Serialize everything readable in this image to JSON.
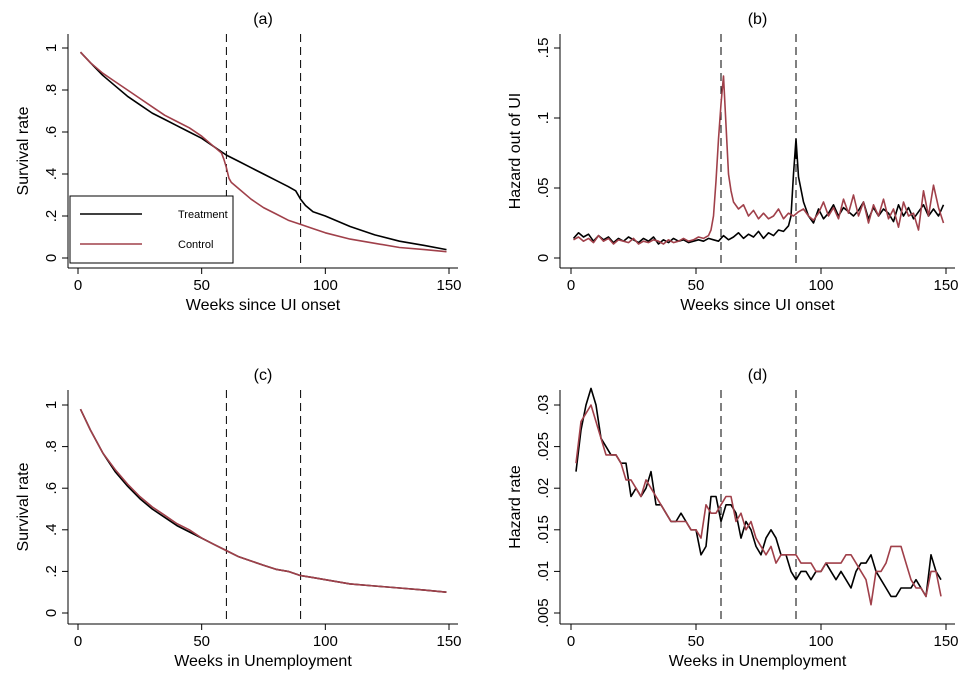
{
  "colors": {
    "treatment": "#000000",
    "control": "#a0404a",
    "axis": "#000000",
    "vline": "#000000"
  },
  "chart_data": [
    {
      "id": "a",
      "type": "line",
      "title": "(a)",
      "xlabel": "Weeks since UI onset",
      "ylabel": "Survival rate",
      "xlim": [
        0,
        150
      ],
      "ylim": [
        0,
        1
      ],
      "xticks": [
        0,
        50,
        100,
        150
      ],
      "xtick_labels": [
        "0",
        "50",
        "100",
        "150"
      ],
      "yticks": [
        0,
        0.2,
        0.4,
        0.6,
        0.8,
        1
      ],
      "ytick_labels": [
        "0",
        ".2",
        ".4",
        ".6",
        ".8",
        "1"
      ],
      "vlines": [
        60,
        90
      ],
      "grid": false,
      "legend": {
        "placement": "bottom-left",
        "entries": [
          "Treatment",
          "Control"
        ]
      },
      "series": [
        {
          "name": "Treatment",
          "color_key": "treatment",
          "x": [
            1,
            5,
            10,
            15,
            20,
            25,
            30,
            35,
            40,
            45,
            50,
            55,
            60,
            65,
            70,
            75,
            80,
            85,
            88,
            90,
            92,
            95,
            100,
            110,
            120,
            130,
            140,
            149
          ],
          "y": [
            0.98,
            0.93,
            0.87,
            0.82,
            0.77,
            0.73,
            0.69,
            0.66,
            0.63,
            0.6,
            0.57,
            0.53,
            0.49,
            0.46,
            0.43,
            0.4,
            0.37,
            0.34,
            0.32,
            0.28,
            0.25,
            0.22,
            0.2,
            0.15,
            0.11,
            0.08,
            0.06,
            0.04
          ]
        },
        {
          "name": "Control",
          "color_key": "control",
          "x": [
            1,
            5,
            10,
            15,
            20,
            25,
            30,
            35,
            40,
            45,
            50,
            55,
            58,
            59,
            60,
            61,
            62,
            65,
            70,
            75,
            80,
            85,
            90,
            95,
            100,
            110,
            120,
            130,
            140,
            149
          ],
          "y": [
            0.98,
            0.93,
            0.88,
            0.84,
            0.8,
            0.76,
            0.72,
            0.68,
            0.65,
            0.62,
            0.58,
            0.53,
            0.5,
            0.47,
            0.43,
            0.38,
            0.36,
            0.33,
            0.28,
            0.24,
            0.21,
            0.18,
            0.16,
            0.14,
            0.12,
            0.09,
            0.07,
            0.05,
            0.04,
            0.03
          ]
        }
      ]
    },
    {
      "id": "b",
      "type": "line",
      "title": "(b)",
      "xlabel": "Weeks since UI onset",
      "ylabel": "Hazard out of UI",
      "xlim": [
        0,
        150
      ],
      "ylim": [
        0,
        0.15
      ],
      "xticks": [
        0,
        50,
        100,
        150
      ],
      "xtick_labels": [
        "0",
        "50",
        "100",
        "150"
      ],
      "yticks": [
        0,
        0.05,
        0.1,
        0.15
      ],
      "ytick_labels": [
        "0",
        ".05",
        ".1",
        ".15"
      ],
      "vlines": [
        60,
        90
      ],
      "grid": false,
      "series": [
        {
          "name": "Treatment",
          "color_key": "treatment",
          "x": [
            1,
            3,
            5,
            7,
            9,
            11,
            13,
            15,
            17,
            19,
            21,
            23,
            25,
            27,
            29,
            31,
            33,
            35,
            37,
            39,
            41,
            43,
            45,
            47,
            49,
            51,
            53,
            55,
            57,
            59,
            61,
            63,
            65,
            67,
            69,
            71,
            73,
            75,
            77,
            79,
            81,
            83,
            85,
            87,
            88,
            89,
            90,
            91,
            93,
            95,
            97,
            99,
            101,
            103,
            105,
            107,
            109,
            111,
            113,
            115,
            117,
            119,
            121,
            123,
            125,
            127,
            129,
            131,
            133,
            135,
            137,
            139,
            141,
            143,
            145,
            147,
            149
          ],
          "y": [
            0.014,
            0.018,
            0.015,
            0.017,
            0.012,
            0.016,
            0.013,
            0.015,
            0.011,
            0.014,
            0.012,
            0.015,
            0.013,
            0.011,
            0.014,
            0.012,
            0.015,
            0.01,
            0.013,
            0.011,
            0.014,
            0.012,
            0.013,
            0.011,
            0.012,
            0.013,
            0.012,
            0.014,
            0.013,
            0.012,
            0.016,
            0.013,
            0.015,
            0.018,
            0.014,
            0.017,
            0.015,
            0.019,
            0.014,
            0.018,
            0.016,
            0.02,
            0.019,
            0.023,
            0.03,
            0.06,
            0.085,
            0.058,
            0.04,
            0.03,
            0.025,
            0.035,
            0.028,
            0.032,
            0.038,
            0.03,
            0.036,
            0.033,
            0.03,
            0.034,
            0.04,
            0.028,
            0.036,
            0.03,
            0.035,
            0.032,
            0.026,
            0.038,
            0.03,
            0.036,
            0.028,
            0.033,
            0.038,
            0.03,
            0.035,
            0.03,
            0.038
          ]
        },
        {
          "name": "Control",
          "color_key": "control",
          "x": [
            1,
            3,
            5,
            7,
            9,
            11,
            13,
            15,
            17,
            19,
            21,
            23,
            25,
            27,
            29,
            31,
            33,
            35,
            37,
            39,
            41,
            43,
            45,
            47,
            49,
            51,
            53,
            55,
            56,
            57,
            58,
            59,
            60,
            61,
            62,
            63,
            64,
            65,
            67,
            69,
            71,
            73,
            75,
            77,
            79,
            81,
            83,
            85,
            87,
            89,
            91,
            93,
            95,
            97,
            99,
            101,
            103,
            105,
            107,
            109,
            111,
            113,
            115,
            117,
            119,
            121,
            123,
            125,
            127,
            129,
            131,
            133,
            135,
            137,
            139,
            141,
            143,
            145,
            147,
            149
          ],
          "y": [
            0.013,
            0.015,
            0.012,
            0.014,
            0.011,
            0.016,
            0.012,
            0.014,
            0.01,
            0.013,
            0.012,
            0.011,
            0.014,
            0.01,
            0.012,
            0.011,
            0.013,
            0.012,
            0.01,
            0.013,
            0.011,
            0.012,
            0.014,
            0.012,
            0.013,
            0.015,
            0.014,
            0.016,
            0.02,
            0.03,
            0.055,
            0.085,
            0.11,
            0.13,
            0.095,
            0.06,
            0.048,
            0.04,
            0.035,
            0.038,
            0.03,
            0.034,
            0.028,
            0.032,
            0.028,
            0.03,
            0.035,
            0.028,
            0.032,
            0.03,
            0.033,
            0.035,
            0.03,
            0.027,
            0.032,
            0.04,
            0.03,
            0.036,
            0.028,
            0.042,
            0.032,
            0.045,
            0.03,
            0.04,
            0.025,
            0.038,
            0.03,
            0.042,
            0.028,
            0.035,
            0.022,
            0.04,
            0.03,
            0.032,
            0.02,
            0.048,
            0.03,
            0.052,
            0.036,
            0.025
          ]
        }
      ]
    },
    {
      "id": "c",
      "type": "line",
      "title": "(c)",
      "xlabel": "Weeks in Unemployment",
      "ylabel": "Survival rate",
      "xlim": [
        0,
        150
      ],
      "ylim": [
        0,
        1
      ],
      "xticks": [
        0,
        50,
        100,
        150
      ],
      "xtick_labels": [
        "0",
        "50",
        "100",
        "150"
      ],
      "yticks": [
        0,
        0.2,
        0.4,
        0.6,
        0.8,
        1
      ],
      "ytick_labels": [
        "0",
        ".2",
        ".4",
        ".6",
        ".8",
        "1"
      ],
      "vlines": [
        60,
        90
      ],
      "grid": false,
      "series": [
        {
          "name": "Treatment",
          "color_key": "treatment",
          "x": [
            1,
            5,
            10,
            15,
            20,
            25,
            30,
            35,
            40,
            45,
            50,
            55,
            60,
            65,
            70,
            75,
            80,
            85,
            90,
            95,
            100,
            110,
            120,
            130,
            140,
            149
          ],
          "y": [
            0.98,
            0.88,
            0.77,
            0.68,
            0.61,
            0.55,
            0.5,
            0.46,
            0.42,
            0.39,
            0.36,
            0.33,
            0.3,
            0.27,
            0.25,
            0.23,
            0.21,
            0.2,
            0.18,
            0.17,
            0.16,
            0.14,
            0.13,
            0.12,
            0.11,
            0.1
          ]
        },
        {
          "name": "Control",
          "color_key": "control",
          "x": [
            1,
            5,
            10,
            15,
            20,
            25,
            30,
            35,
            40,
            45,
            50,
            55,
            60,
            65,
            70,
            75,
            80,
            85,
            90,
            95,
            100,
            110,
            120,
            130,
            140,
            149
          ],
          "y": [
            0.98,
            0.88,
            0.77,
            0.69,
            0.62,
            0.56,
            0.51,
            0.47,
            0.43,
            0.4,
            0.36,
            0.33,
            0.3,
            0.27,
            0.25,
            0.23,
            0.21,
            0.2,
            0.18,
            0.17,
            0.16,
            0.14,
            0.13,
            0.12,
            0.11,
            0.1
          ]
        }
      ]
    },
    {
      "id": "d",
      "type": "line",
      "title": "(d)",
      "xlabel": "Weeks in Unemployment",
      "ylabel": "Hazard rate",
      "xlim": [
        0,
        150
      ],
      "ylim": [
        0.004,
        0.033
      ],
      "xticks": [
        0,
        50,
        100,
        150
      ],
      "xtick_labels": [
        "0",
        "50",
        "100",
        "150"
      ],
      "yticks": [
        0.005,
        0.01,
        0.015,
        0.02,
        0.025,
        0.03
      ],
      "ytick_labels": [
        ".005",
        ".01",
        ".015",
        ".02",
        ".025",
        ".03"
      ],
      "vlines": [
        60,
        90
      ],
      "grid": false,
      "series": [
        {
          "name": "Treatment",
          "color_key": "treatment",
          "x": [
            2,
            4,
            6,
            8,
            10,
            12,
            14,
            16,
            18,
            20,
            22,
            24,
            26,
            28,
            30,
            32,
            34,
            36,
            38,
            40,
            42,
            44,
            46,
            48,
            50,
            52,
            54,
            56,
            58,
            60,
            62,
            64,
            66,
            68,
            70,
            72,
            74,
            76,
            78,
            80,
            82,
            84,
            86,
            88,
            90,
            92,
            94,
            96,
            98,
            100,
            102,
            104,
            106,
            108,
            110,
            112,
            114,
            116,
            118,
            120,
            122,
            124,
            126,
            128,
            130,
            132,
            134,
            136,
            138,
            140,
            142,
            144,
            146,
            148
          ],
          "y": [
            0.022,
            0.027,
            0.03,
            0.032,
            0.03,
            0.026,
            0.025,
            0.024,
            0.024,
            0.023,
            0.023,
            0.019,
            0.02,
            0.019,
            0.02,
            0.022,
            0.018,
            0.018,
            0.017,
            0.016,
            0.016,
            0.017,
            0.016,
            0.015,
            0.015,
            0.012,
            0.013,
            0.019,
            0.019,
            0.016,
            0.018,
            0.018,
            0.017,
            0.014,
            0.016,
            0.015,
            0.013,
            0.012,
            0.014,
            0.015,
            0.014,
            0.012,
            0.012,
            0.01,
            0.009,
            0.01,
            0.01,
            0.009,
            0.01,
            0.01,
            0.011,
            0.01,
            0.009,
            0.01,
            0.009,
            0.008,
            0.01,
            0.011,
            0.011,
            0.012,
            0.01,
            0.009,
            0.008,
            0.007,
            0.007,
            0.008,
            0.008,
            0.008,
            0.009,
            0.008,
            0.007,
            0.012,
            0.01,
            0.009
          ]
        },
        {
          "name": "Control",
          "color_key": "control",
          "x": [
            2,
            4,
            6,
            8,
            10,
            12,
            14,
            16,
            18,
            20,
            22,
            24,
            26,
            28,
            30,
            32,
            34,
            36,
            38,
            40,
            42,
            44,
            46,
            48,
            50,
            52,
            54,
            56,
            58,
            60,
            62,
            64,
            66,
            68,
            70,
            72,
            74,
            76,
            78,
            80,
            82,
            84,
            86,
            88,
            90,
            92,
            94,
            96,
            98,
            100,
            102,
            104,
            106,
            108,
            110,
            112,
            114,
            116,
            118,
            120,
            122,
            124,
            126,
            128,
            130,
            132,
            134,
            136,
            138,
            140,
            142,
            144,
            146,
            148
          ],
          "y": [
            0.023,
            0.028,
            0.029,
            0.03,
            0.028,
            0.026,
            0.024,
            0.024,
            0.024,
            0.023,
            0.021,
            0.021,
            0.02,
            0.019,
            0.021,
            0.02,
            0.019,
            0.018,
            0.017,
            0.016,
            0.016,
            0.016,
            0.016,
            0.015,
            0.015,
            0.014,
            0.018,
            0.017,
            0.017,
            0.018,
            0.019,
            0.019,
            0.016,
            0.017,
            0.015,
            0.016,
            0.014,
            0.013,
            0.012,
            0.013,
            0.011,
            0.012,
            0.012,
            0.012,
            0.012,
            0.011,
            0.011,
            0.011,
            0.01,
            0.01,
            0.011,
            0.011,
            0.011,
            0.011,
            0.012,
            0.012,
            0.011,
            0.01,
            0.009,
            0.006,
            0.01,
            0.01,
            0.011,
            0.013,
            0.013,
            0.013,
            0.011,
            0.009,
            0.008,
            0.008,
            0.007,
            0.01,
            0.01,
            0.007
          ]
        }
      ]
    }
  ]
}
